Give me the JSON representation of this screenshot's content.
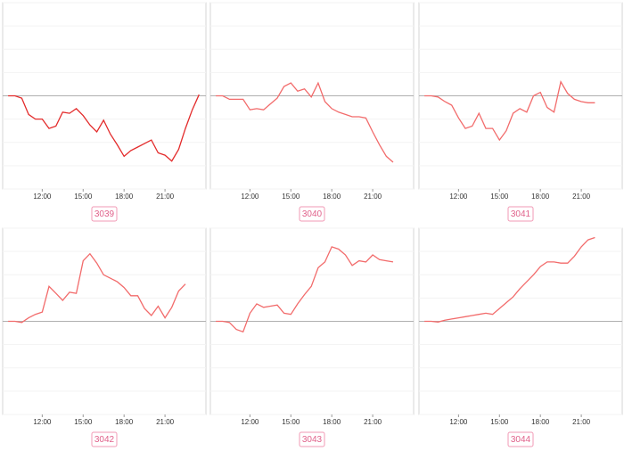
{
  "chart_data": [
    {
      "type": "line",
      "title": "3039",
      "color": "#e32b2b",
      "x": [
        9.5,
        10,
        10.5,
        11,
        11.5,
        12,
        12.5,
        13,
        13.5,
        14,
        14.5,
        15,
        15.5,
        16,
        16.5,
        17,
        17.5,
        18,
        18.5,
        19,
        19.5,
        20,
        20.5,
        21,
        21.5,
        22,
        22.5,
        23,
        23.5
      ],
      "values": [
        0,
        0,
        -0.1,
        -0.8,
        -1.0,
        -1.0,
        -1.4,
        -1.3,
        -0.7,
        -0.75,
        -0.55,
        -0.85,
        -1.25,
        -1.55,
        -1.05,
        -1.65,
        -2.1,
        -2.6,
        -2.35,
        -2.2,
        -2.05,
        -1.9,
        -2.45,
        -2.55,
        -2.8,
        -2.3,
        -1.4,
        -0.6,
        0.05
      ],
      "xlim": [
        9.1,
        24
      ],
      "xticks": [
        {
          "value": 12,
          "label": "12:00"
        },
        {
          "value": 15,
          "label": "15:00"
        },
        {
          "value": 18,
          "label": "18:00"
        },
        {
          "value": 21,
          "label": "21:00"
        }
      ],
      "ylim": [
        -4,
        4
      ],
      "yticks": [
        -4,
        -3,
        -2,
        -1,
        0,
        1,
        2,
        3,
        4
      ],
      "grid": true
    },
    {
      "type": "line",
      "title": "3040",
      "color": "#f26b6b",
      "x": [
        9.5,
        10,
        10.5,
        11,
        11.5,
        12,
        12.5,
        13,
        13.5,
        14,
        14.5,
        15,
        15.5,
        16,
        16.5,
        17,
        17.5,
        18,
        18.5,
        19,
        19.5,
        20,
        20.5,
        21,
        21.5,
        22,
        22.5
      ],
      "values": [
        0,
        0,
        -0.15,
        -0.15,
        -0.15,
        -0.6,
        -0.55,
        -0.6,
        -0.35,
        -0.1,
        0.4,
        0.55,
        0.2,
        0.3,
        -0.05,
        0.55,
        -0.25,
        -0.55,
        -0.7,
        -0.8,
        -0.9,
        -0.9,
        -0.95,
        -1.55,
        -2.1,
        -2.6,
        -2.85
      ],
      "xlim": [
        9.1,
        24
      ],
      "xticks": [
        {
          "value": 12,
          "label": "12:00"
        },
        {
          "value": 15,
          "label": "15:00"
        },
        {
          "value": 18,
          "label": "18:00"
        },
        {
          "value": 21,
          "label": "21:00"
        }
      ],
      "ylim": [
        -4,
        4
      ],
      "yticks": [
        -4,
        -3,
        -2,
        -1,
        0,
        1,
        2,
        3,
        4
      ],
      "grid": true
    },
    {
      "type": "line",
      "title": "3041",
      "color": "#f26b6b",
      "x": [
        9.5,
        10,
        10.5,
        11,
        11.5,
        12,
        12.5,
        13,
        13.5,
        14,
        14.5,
        15,
        15.5,
        16,
        16.5,
        17,
        17.5,
        18,
        18.5,
        19,
        19.5,
        20,
        20.5,
        21,
        21.5,
        22
      ],
      "values": [
        0,
        0,
        -0.05,
        -0.25,
        -0.4,
        -0.95,
        -1.4,
        -1.3,
        -0.75,
        -1.4,
        -1.4,
        -1.9,
        -1.5,
        -0.75,
        -0.55,
        -0.7,
        0.0,
        0.15,
        -0.5,
        -0.7,
        0.6,
        0.1,
        -0.15,
        -0.25,
        -0.3,
        -0.3
      ],
      "xlim": [
        9.1,
        24
      ],
      "xticks": [
        {
          "value": 12,
          "label": "12:00"
        },
        {
          "value": 15,
          "label": "15:00"
        },
        {
          "value": 18,
          "label": "18:00"
        },
        {
          "value": 21,
          "label": "21:00"
        }
      ],
      "ylim": [
        -4,
        4
      ],
      "yticks": [
        -4,
        -3,
        -2,
        -1,
        0,
        1,
        2,
        3,
        4
      ],
      "grid": true
    },
    {
      "type": "line",
      "title": "3042",
      "color": "#f26b6b",
      "x": [
        9.5,
        10,
        10.5,
        11,
        11.5,
        12,
        12.5,
        13,
        13.5,
        14,
        14.5,
        15,
        15.5,
        16,
        16.5,
        17,
        17.5,
        18,
        18.5,
        19,
        19.5,
        20,
        20.5,
        21,
        21.5,
        22,
        22.5
      ],
      "values": [
        0,
        0,
        -0.05,
        0.15,
        0.3,
        0.4,
        1.5,
        1.2,
        0.9,
        1.25,
        1.2,
        2.6,
        2.9,
        2.5,
        2.0,
        1.85,
        1.7,
        1.45,
        1.1,
        1.1,
        0.55,
        0.25,
        0.65,
        0.15,
        0.6,
        1.3,
        1.6
      ],
      "xlim": [
        9.1,
        24
      ],
      "xticks": [
        {
          "value": 12,
          "label": "12:00"
        },
        {
          "value": 15,
          "label": "15:00"
        },
        {
          "value": 18,
          "label": "18:00"
        },
        {
          "value": 21,
          "label": "21:00"
        }
      ],
      "ylim": [
        -4,
        4
      ],
      "yticks": [
        -4,
        -3,
        -2,
        -1,
        0,
        1,
        2,
        3,
        4
      ],
      "grid": true
    },
    {
      "type": "line",
      "title": "3043",
      "color": "#f26b6b",
      "x": [
        9.5,
        10,
        10.5,
        11,
        11.5,
        12,
        12.5,
        13,
        13.5,
        14,
        14.5,
        15,
        15.5,
        16,
        16.5,
        17,
        17.5,
        18,
        18.5,
        19,
        19.5,
        20,
        20.5,
        21,
        21.5,
        22,
        22.5
      ],
      "values": [
        0,
        0,
        -0.05,
        -0.35,
        -0.45,
        0.35,
        0.75,
        0.6,
        0.65,
        0.7,
        0.35,
        0.3,
        0.75,
        1.15,
        1.5,
        2.3,
        2.55,
        3.2,
        3.1,
        2.85,
        2.4,
        2.6,
        2.55,
        2.85,
        2.65,
        2.6,
        2.55
      ],
      "xlim": [
        9.1,
        24
      ],
      "xticks": [
        {
          "value": 12,
          "label": "12:00"
        },
        {
          "value": 15,
          "label": "15:00"
        },
        {
          "value": 18,
          "label": "18:00"
        },
        {
          "value": 21,
          "label": "21:00"
        }
      ],
      "ylim": [
        -4,
        4
      ],
      "yticks": [
        -4,
        -3,
        -2,
        -1,
        0,
        1,
        2,
        3,
        4
      ],
      "grid": true
    },
    {
      "type": "line",
      "title": "3044",
      "color": "#f26b6b",
      "x": [
        9.5,
        10,
        10.5,
        11,
        11.5,
        12,
        12.5,
        13,
        13.5,
        14,
        14.5,
        15,
        15.5,
        16,
        16.5,
        17,
        17.5,
        18,
        18.5,
        19,
        19.5,
        20,
        20.5,
        21,
        21.5,
        22
      ],
      "values": [
        0,
        0,
        -0.03,
        0.05,
        0.1,
        0.15,
        0.2,
        0.25,
        0.3,
        0.35,
        0.3,
        0.55,
        0.8,
        1.05,
        1.4,
        1.7,
        2.0,
        2.35,
        2.55,
        2.55,
        2.5,
        2.5,
        2.8,
        3.2,
        3.5,
        3.6
      ],
      "xlim": [
        9.1,
        24
      ],
      "xticks": [
        {
          "value": 12,
          "label": "12:00"
        },
        {
          "value": 15,
          "label": "15:00"
        },
        {
          "value": 18,
          "label": "18:00"
        },
        {
          "value": 21,
          "label": "21:00"
        }
      ],
      "ylim": [
        -4,
        4
      ],
      "yticks": [
        -4,
        -3,
        -2,
        -1,
        0,
        1,
        2,
        3,
        4
      ],
      "grid": true
    }
  ]
}
